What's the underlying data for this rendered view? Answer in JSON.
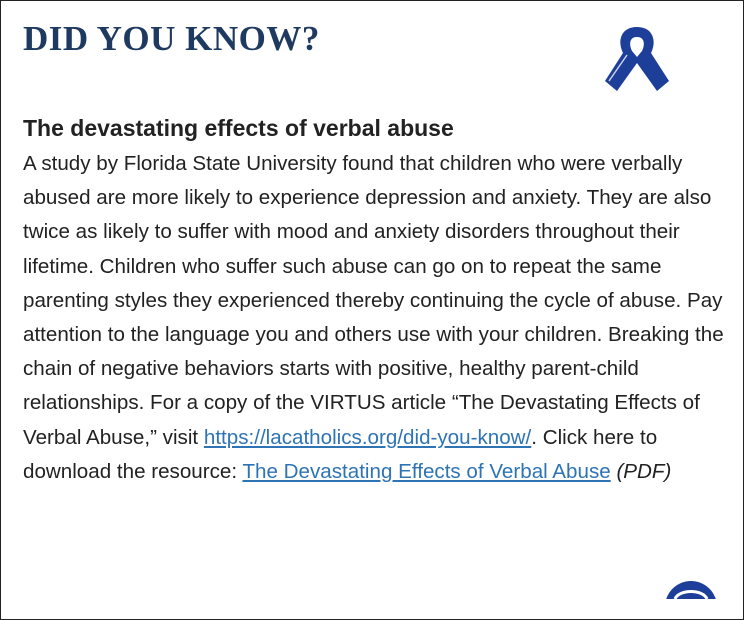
{
  "header": {
    "title": "DID YOU KNOW?"
  },
  "article": {
    "heading": "The devastating effects of verbal abuse",
    "body": {
      "intro": "A study by Florida State University found that children who were verbally abused are more likely to experience depression and anxiety. They are also twice as likely to suffer with mood and anxiety disorders throughout their lifetime. Children who suffer such abuse can go on to repeat the same parenting styles they experienced thereby continuing the cycle of abuse. Pay attention to the language you and others use with your children. Breaking the chain of negative behaviors starts with positive, healthy parent-child relationships. For a copy of the VIRTUS article “The Devastating Effects of Verbal Abuse,” visit",
      "link_url": "https://lacatholics.org/did-you-know/",
      "middle": ". Click here to download the resource:",
      "link_resource": "The Devastating Effects of Verbal Abuse",
      "format": "(PDF)"
    }
  }
}
